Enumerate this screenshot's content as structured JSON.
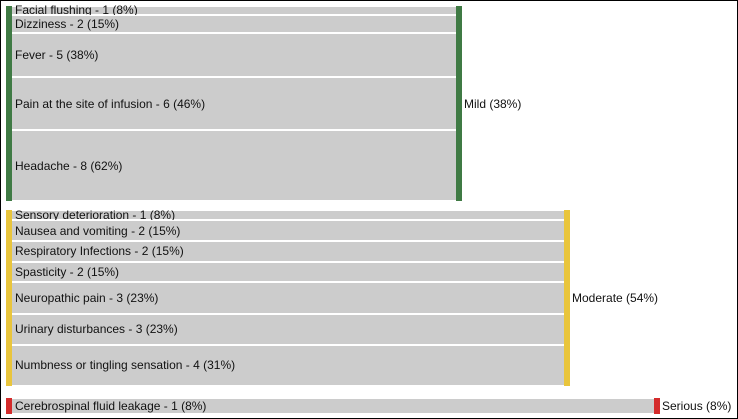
{
  "categories": [
    {
      "label": "Mild (38%)",
      "color": "#3f7a44",
      "nodes": [
        {
          "label": "Facial flushing - 1 (8%)",
          "count": 1
        },
        {
          "label": "Dizziness - 2 (15%)",
          "count": 2
        },
        {
          "label": "Fever - 5 (38%)",
          "count": 5
        },
        {
          "label": "Pain at the site of infusion - 6 (46%)",
          "count": 6
        },
        {
          "label": "Headache - 8 (62%)",
          "count": 8
        }
      ]
    },
    {
      "label": "Moderate (54%)",
      "color": "#e9c53c",
      "nodes": [
        {
          "label": "Sensory deterioration - 1 (8%)",
          "count": 1
        },
        {
          "label": "Nausea and vomiting - 2 (15%)",
          "count": 2
        },
        {
          "label": "Respiratory Infections - 2 (15%)",
          "count": 2
        },
        {
          "label": "Spasticity - 2 (15%)",
          "count": 2
        },
        {
          "label": "Neuropathic pain - 3 (23%)",
          "count": 3
        },
        {
          "label": "Urinary disturbances - 3 (23%)",
          "count": 3
        },
        {
          "label": "Numbness or tingling sensation - 4 (31%)",
          "count": 4
        }
      ]
    },
    {
      "label": "Serious (8%)",
      "color": "#d42b2b",
      "nodes": [
        {
          "label": "Cerebrospinal fluid leakage - 1 (8%)",
          "count": 1
        }
      ]
    }
  ]
}
